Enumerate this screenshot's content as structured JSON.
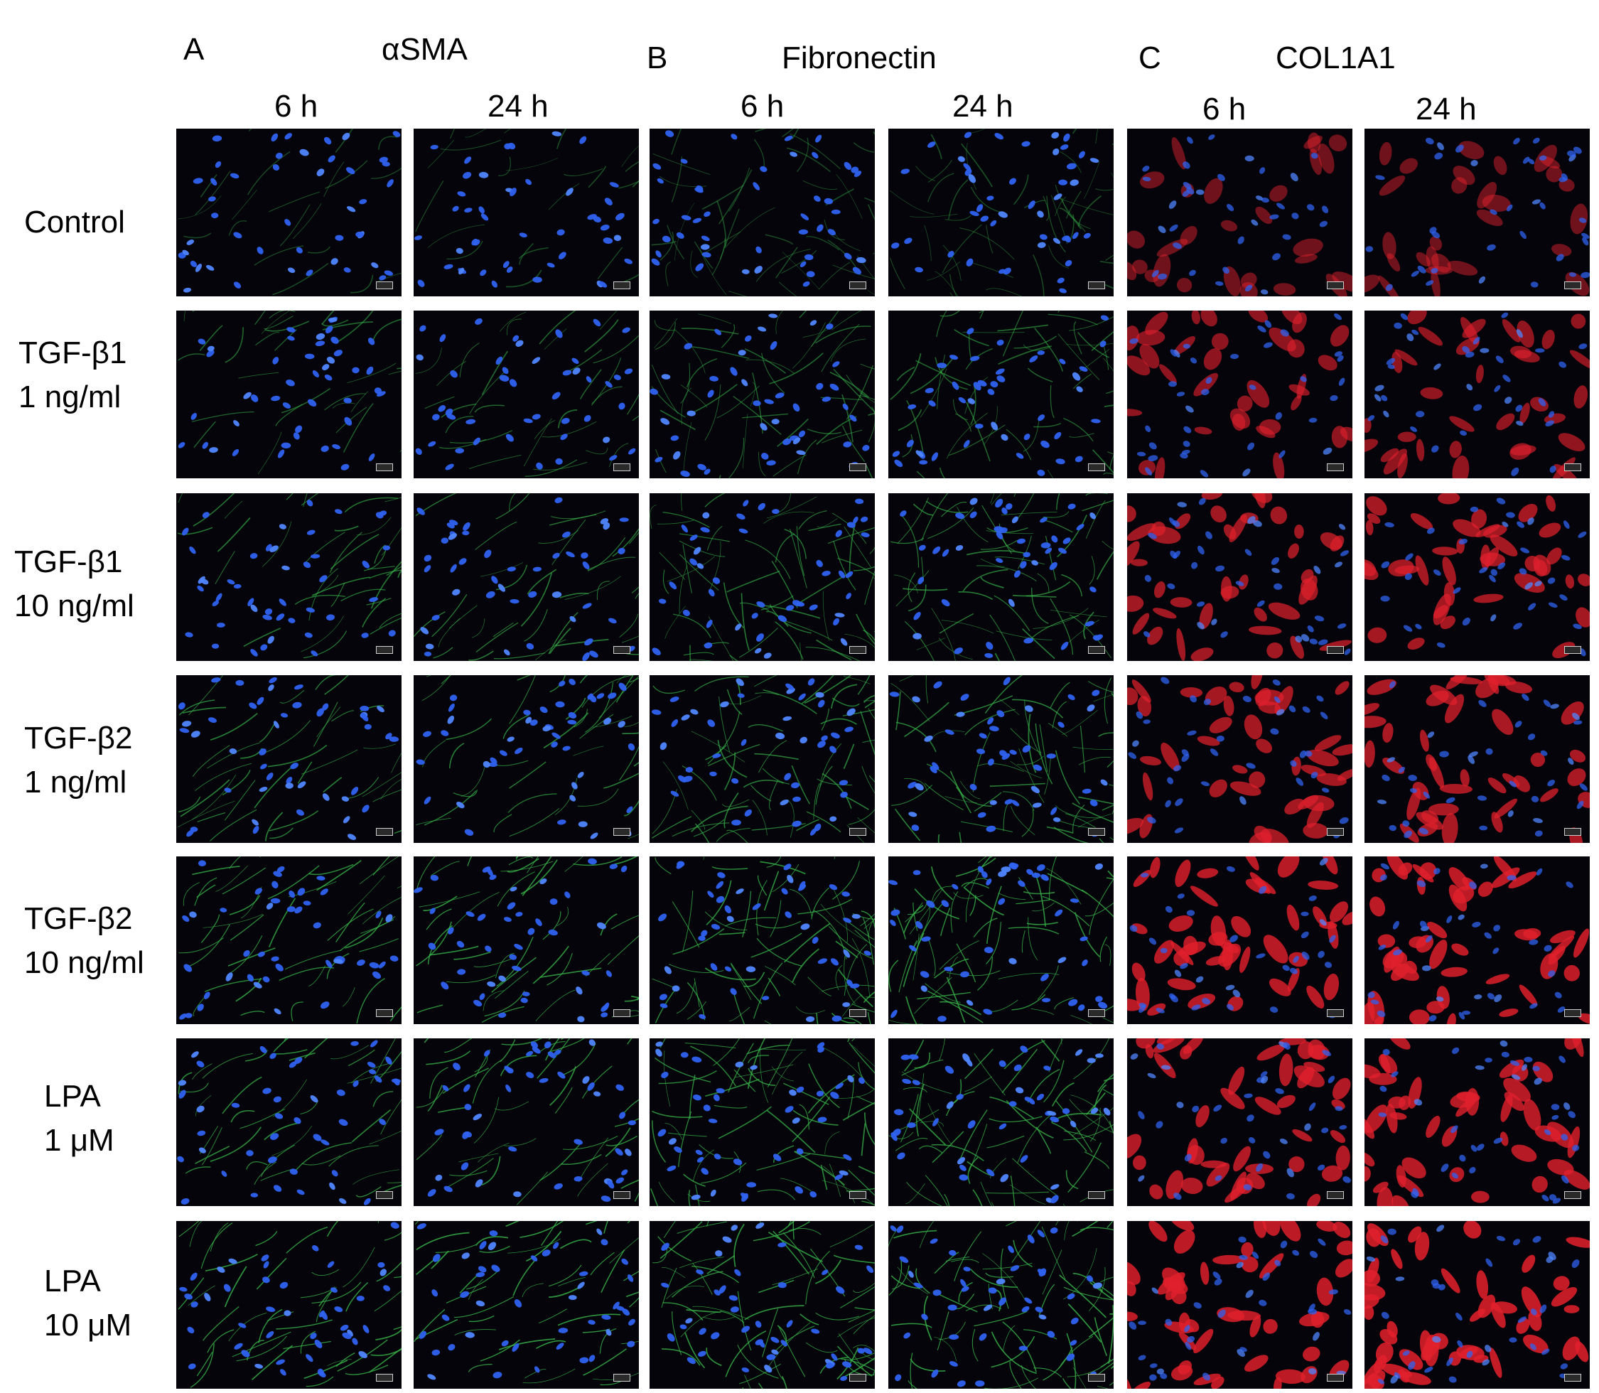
{
  "panels": [
    {
      "letter": "A",
      "marker": "αSMA",
      "stain": "green",
      "times": [
        "6 h",
        "24 h"
      ]
    },
    {
      "letter": "B",
      "marker": "Fibronectin",
      "stain": "green-network",
      "times": [
        "6 h",
        "24 h"
      ]
    },
    {
      "letter": "C",
      "marker": "COL1A1",
      "stain": "red",
      "times": [
        "6 h",
        "24 h"
      ]
    }
  ],
  "conditions": [
    {
      "line1": "Control",
      "line2": "",
      "intensity": 0.25
    },
    {
      "line1": "TGF-β1",
      "line2": "1 ng/ml",
      "intensity": 0.5
    },
    {
      "line1": "TGF-β1",
      "line2": "10 ng/ml",
      "intensity": 0.65
    },
    {
      "line1": "TGF-β2",
      "line2": "1 ng/ml",
      "intensity": 0.7
    },
    {
      "line1": "TGF-β2",
      "line2": "10 ng/ml",
      "intensity": 0.85
    },
    {
      "line1": "LPA",
      "line2": "1 μM",
      "intensity": 0.8
    },
    {
      "line1": "LPA",
      "line2": "10 μM",
      "intensity": 0.9
    }
  ],
  "colors": {
    "nucleus": "#2f62f0",
    "nucleus_bright": "#4f86ff",
    "green": "#39b54a",
    "red": "#e0202c",
    "tile_background": "#04040a"
  }
}
